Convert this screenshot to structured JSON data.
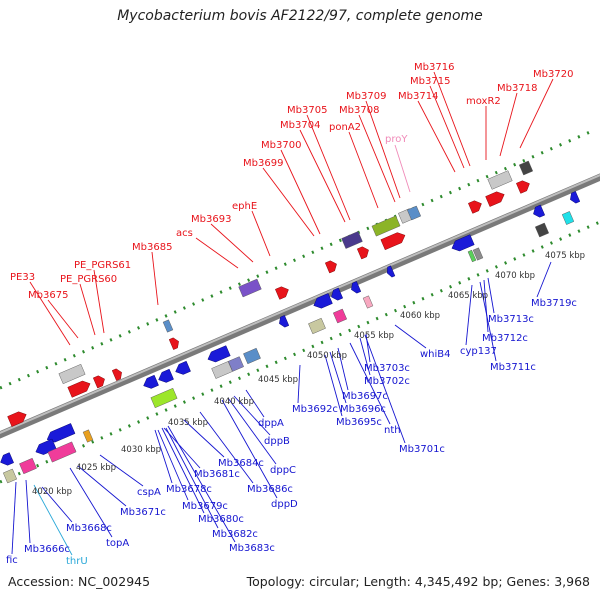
{
  "title": "Mycobacterium bovis AF2122/97, complete genome",
  "footer": {
    "accession": "Accession: NC_002945",
    "info": "Topology: circular; Length: 4,345,492 bp; Genes: 3,968"
  },
  "colors": {
    "forward_label": "#e8141b",
    "reverse_label": "#1515d0",
    "pseudo_label": "#f08ab8",
    "rna_label": "#2aa8d8",
    "backbone": "#8a8a8a",
    "tick": "#2e8b2e"
  },
  "ticks": [
    "4020 kbp",
    "4025 kbp",
    "4030 kbp",
    "4035 kbp",
    "4040 kbp",
    "4045 kbp",
    "4050 kbp",
    "4055 kbp",
    "4060 kbp",
    "4065 kbp",
    "4070 kbp",
    "4075 kbp"
  ],
  "forward_labels": [
    "PE33",
    "Mb3675",
    "PE_PGRS60",
    "PE_PGRS61",
    "Mb3685",
    "acs",
    "Mb3693",
    "ephE",
    "Mb3699",
    "Mb3700",
    "Mb3704",
    "Mb3705",
    "ponA2",
    "Mb3708",
    "Mb3709",
    "Mb3714",
    "Mb3715",
    "Mb3716",
    "moxR2",
    "Mb3718",
    "Mb3720"
  ],
  "pseudo_labels": [
    "proY"
  ],
  "reverse_labels": [
    "fic",
    "Mb3666c",
    "thrU",
    "Mb3668c",
    "topA",
    "Mb3671c",
    "cspA",
    "Mb3678c",
    "Mb3679c",
    "Mb3680c",
    "Mb3681c",
    "Mb3682c",
    "Mb3683c",
    "Mb3684c",
    "Mb3686c",
    "dppD",
    "dppC",
    "dppB",
    "dppA",
    "Mb3692c",
    "Mb3695c",
    "Mb3696c",
    "Mb3697c",
    "nth",
    "Mb3701c",
    "Mb3702c",
    "Mb3703c",
    "whiB4",
    "cyp137",
    "Mb3711c",
    "Mb3712c",
    "Mb3713c",
    "Mb3719c"
  ]
}
